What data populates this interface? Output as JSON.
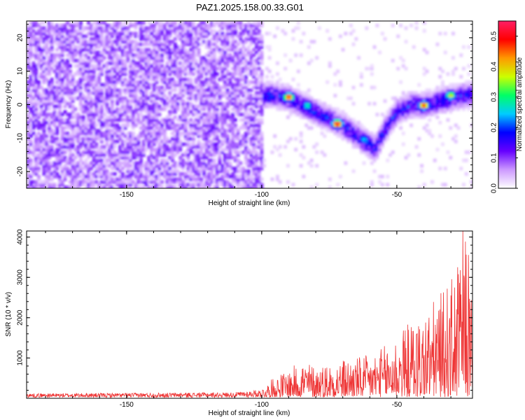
{
  "title": "PAZ1.2025.158.00.33.G01",
  "chart_data": [
    {
      "type": "heatmap",
      "xlabel": "Height of straight line (km)",
      "ylabel": "Frequency (Hz)",
      "xlim": [
        -187,
        -22
      ],
      "ylim": [
        -25,
        25
      ],
      "x_ticks": [
        "-150",
        "-100",
        "-50"
      ],
      "y_ticks": [
        "-20",
        "-10",
        "0",
        "10",
        "20"
      ],
      "colorbar": {
        "label": "Normalized spectral amplitude",
        "range": [
          0,
          0.55
        ],
        "ticks": [
          "0.0",
          "0.1",
          "0.2",
          "0.3",
          "0.4",
          "0.5"
        ],
        "colors": [
          "#ffffff",
          "#cc99ff",
          "#6600ff",
          "#0000ff",
          "#00ccff",
          "#00ff66",
          "#ccff00",
          "#ff9900",
          "#ff0000",
          "#ff1f66"
        ]
      },
      "signal_track": [
        [
          -95,
          3
        ],
        [
          -90,
          2
        ],
        [
          -85,
          0
        ],
        [
          -80,
          -2
        ],
        [
          -75,
          -4
        ],
        [
          -70,
          -6
        ],
        [
          -65,
          -9
        ],
        [
          -60,
          -12
        ],
        [
          -58,
          -13
        ],
        [
          -55,
          -8
        ],
        [
          -50,
          -2
        ],
        [
          -45,
          0
        ],
        [
          -40,
          0
        ],
        [
          -35,
          1
        ],
        [
          -30,
          2
        ],
        [
          -25,
          3
        ]
      ],
      "signal_peaks": [
        [
          -90,
          2.5,
          0.5
        ],
        [
          -72,
          -5.5,
          0.55
        ],
        [
          -40,
          0,
          0.5
        ],
        [
          -30,
          3,
          0.4
        ],
        [
          -83,
          0,
          0.3
        ],
        [
          -62,
          -10,
          0.25
        ]
      ],
      "noise_region": [
        -187,
        -100
      ]
    },
    {
      "type": "line",
      "xlabel": "Height of straight line (km)",
      "ylabel": "SNR (10 * v/v)",
      "xlim": [
        -187,
        -22
      ],
      "ylim": [
        0,
        4150
      ],
      "x_ticks": [
        "-150",
        "-100",
        "-50"
      ],
      "y_ticks": [
        "1000",
        "2000",
        "3000",
        "4000"
      ],
      "color": "#ee3333",
      "envelope": [
        [
          -187,
          100
        ],
        [
          -150,
          110
        ],
        [
          -110,
          130
        ],
        [
          -100,
          200
        ],
        [
          -95,
          500
        ],
        [
          -90,
          650
        ],
        [
          -85,
          900
        ],
        [
          -80,
          750
        ],
        [
          -70,
          900
        ],
        [
          -60,
          1000
        ],
        [
          -55,
          1200
        ],
        [
          -50,
          1500
        ],
        [
          -45,
          1800
        ],
        [
          -40,
          2000
        ],
        [
          -35,
          2400
        ],
        [
          -32,
          2600
        ],
        [
          -28,
          3000
        ],
        [
          -26,
          3800
        ],
        [
          -25,
          4150
        ],
        [
          -22,
          2800
        ]
      ]
    }
  ]
}
